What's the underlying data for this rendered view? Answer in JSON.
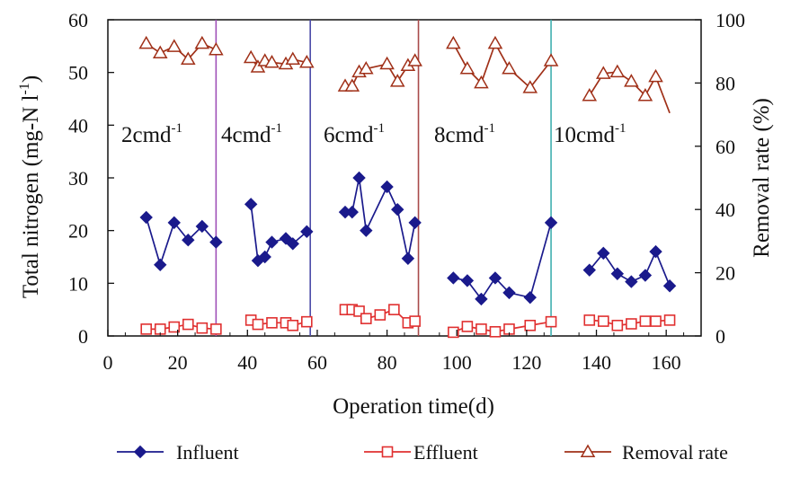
{
  "chart_data": {
    "type": "line",
    "xlabel": "Operation time(d)",
    "ylabel_left": "Total nitrogen (mg-N l",
    "ylabel_left_sup": "-1",
    "ylabel_left_close": ")",
    "ylabel_right": "Removal rate (%)",
    "xlim": [
      0,
      170
    ],
    "xticks": [
      0,
      20,
      40,
      60,
      80,
      100,
      120,
      140,
      160
    ],
    "ylim_left": [
      0,
      60
    ],
    "yticks_left": [
      0,
      10,
      20,
      30,
      40,
      50,
      60
    ],
    "ylim_right": [
      0,
      100
    ],
    "yticks_right": [
      0,
      20,
      40,
      60,
      80,
      100
    ],
    "grid": false,
    "legend_position": "bottom",
    "phases": [
      {
        "label": "2cmd",
        "sup": "-1",
        "end": 31,
        "color": "#a050b8"
      },
      {
        "label": "4cmd",
        "sup": "-1",
        "end": 58,
        "color": "#4a4aa8"
      },
      {
        "label": "6cmd",
        "sup": "-1",
        "end": 89,
        "color": "#a84a4a"
      },
      {
        "label": "8cmd",
        "sup": "-1",
        "end": 127,
        "color": "#40b0b0"
      },
      {
        "label": "10cmd",
        "sup": "-1",
        "end": null,
        "color": null
      }
    ],
    "series": [
      {
        "name": "Influent",
        "axis": "left",
        "color": "#1a1a8c",
        "marker": "diamond",
        "segments": [
          [
            [
              11,
              22.5
            ],
            [
              15,
              13.5
            ],
            [
              19,
              21.5
            ],
            [
              23,
              18.2
            ],
            [
              27,
              20.8
            ],
            [
              31,
              17.8
            ]
          ],
          [
            [
              41,
              25
            ],
            [
              43,
              14.3
            ],
            [
              45,
              15
            ],
            [
              47,
              17.8
            ],
            [
              51,
              18.5
            ],
            [
              53,
              17.5
            ],
            [
              57,
              19.8
            ]
          ],
          [
            [
              68,
              23.5
            ],
            [
              70,
              23.5
            ],
            [
              72,
              30
            ],
            [
              74,
              20
            ],
            [
              80,
              28.3
            ],
            [
              83,
              24
            ],
            [
              86,
              14.7
            ],
            [
              88,
              21.5
            ]
          ],
          [
            [
              99,
              11
            ],
            [
              103,
              10.5
            ],
            [
              107,
              7
            ],
            [
              111,
              11
            ],
            [
              115,
              8.2
            ],
            [
              121,
              7.3
            ],
            [
              127,
              21.5
            ]
          ],
          [
            [
              138,
              12.5
            ],
            [
              142,
              15.7
            ],
            [
              146,
              11.8
            ],
            [
              150,
              10.3
            ],
            [
              154,
              11.5
            ],
            [
              157,
              16
            ],
            [
              161,
              9.5
            ]
          ]
        ]
      },
      {
        "name": "Effluent",
        "axis": "left",
        "color": "#e03030",
        "marker": "square-open",
        "segments": [
          [
            [
              11,
              1.3
            ],
            [
              15,
              1.3
            ],
            [
              19,
              1.7
            ],
            [
              23,
              2.2
            ],
            [
              27,
              1.5
            ],
            [
              31,
              1.3
            ]
          ],
          [
            [
              41,
              3
            ],
            [
              43,
              2.2
            ],
            [
              47,
              2.5
            ],
            [
              51,
              2.5
            ],
            [
              53,
              2
            ],
            [
              57,
              2.7
            ]
          ],
          [
            [
              68,
              5
            ],
            [
              70,
              5
            ],
            [
              72,
              4.7
            ],
            [
              74,
              3.3
            ],
            [
              78,
              4
            ],
            [
              82,
              5
            ],
            [
              86,
              2.5
            ],
            [
              88,
              2.8
            ]
          ],
          [
            [
              99,
              0.7
            ],
            [
              103,
              1.8
            ],
            [
              107,
              1.3
            ],
            [
              111,
              0.8
            ],
            [
              115,
              1.3
            ],
            [
              121,
              2
            ],
            [
              127,
              2.7
            ]
          ],
          [
            [
              138,
              3
            ],
            [
              142,
              2.8
            ],
            [
              146,
              2
            ],
            [
              150,
              2.3
            ],
            [
              154,
              2.8
            ],
            [
              157,
              2.8
            ],
            [
              161,
              3
            ]
          ]
        ]
      },
      {
        "name": "Removal rate",
        "axis": "right",
        "color": "#a03018",
        "marker": "triangle-open",
        "segments": [
          [
            [
              11,
              92.5
            ],
            [
              15,
              89.5
            ],
            [
              19,
              91.5
            ],
            [
              23,
              87.5
            ],
            [
              27,
              92.5
            ],
            [
              31,
              90.5
            ]
          ],
          [
            [
              41,
              88
            ],
            [
              43,
              85
            ],
            [
              45,
              87
            ],
            [
              47,
              86.5
            ],
            [
              51,
              86
            ],
            [
              53,
              87.5
            ],
            [
              57,
              86.5
            ]
          ],
          [
            [
              68,
              79
            ],
            [
              70,
              79
            ],
            [
              72,
              83.5
            ],
            [
              74,
              84.5
            ],
            [
              80,
              86
            ],
            [
              83,
              80.5
            ],
            [
              86,
              85.5
            ],
            [
              88,
              87
            ]
          ],
          [
            [
              99,
              92.5
            ],
            [
              103,
              84.5
            ],
            [
              107,
              80
            ],
            [
              111,
              92.5
            ],
            [
              115,
              84.5
            ],
            [
              121,
              78.5
            ],
            [
              127,
              87
            ]
          ],
          [
            [
              138,
              76
            ],
            [
              142,
              83
            ],
            [
              146,
              83.5
            ],
            [
              150,
              80.5
            ],
            [
              154,
              76
            ],
            [
              157,
              82
            ],
            [
              161,
              70.5
            ]
          ]
        ],
        "unmarked_last_point": true
      }
    ]
  }
}
